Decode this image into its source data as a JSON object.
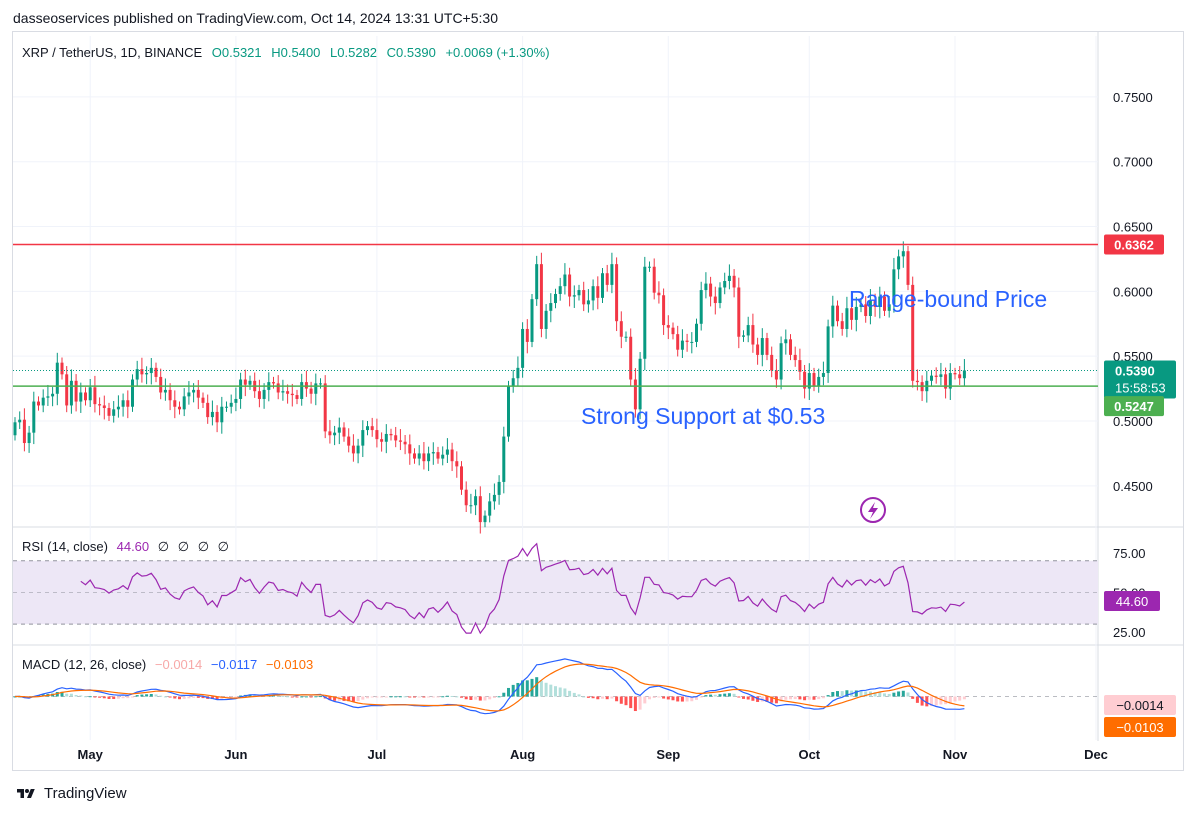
{
  "header": {
    "publisher": "dasseoservices published on TradingView.com, Oct 14, 2024 13:31 UTC+5:30"
  },
  "symbol": {
    "name": "XRP / TetherUS, 1D, BINANCE",
    "open": "O0.5321",
    "high": "H0.5400",
    "low": "L0.5282",
    "close": "C0.5390",
    "change": "+0.0069 (+1.30%)"
  },
  "colors": {
    "up": "#089981",
    "down": "#f23645",
    "resistance": "#f23645",
    "support": "#4caf50",
    "annotation": "#2962ff",
    "rsi_line": "#9c27b0",
    "rsi_band": "#ede7f6",
    "macd_line": "#2962ff",
    "signal_line": "#ff6d00"
  },
  "chart_data": [
    {
      "type": "candlestick",
      "title": "XRP / TetherUS, 1D, BINANCE",
      "x_labels": [
        "May",
        "Jun",
        "Jul",
        "Aug",
        "Sep",
        "Oct",
        "Nov",
        "Dec"
      ],
      "y_ticks": [
        "0.7500",
        "0.7000",
        "0.6500",
        "0.6000",
        "0.5500",
        "0.5000",
        "0.4500"
      ],
      "ylim": [
        0.419,
        0.797
      ],
      "first_date": "2024-04-15",
      "closes": [
        0.499,
        0.501,
        0.483,
        0.491,
        0.515,
        0.512,
        0.518,
        0.519,
        0.521,
        0.545,
        0.536,
        0.512,
        0.531,
        0.515,
        0.522,
        0.516,
        0.526,
        0.513,
        0.512,
        0.51,
        0.504,
        0.509,
        0.511,
        0.516,
        0.511,
        0.532,
        0.54,
        0.536,
        0.537,
        0.541,
        0.534,
        0.522,
        0.524,
        0.516,
        0.511,
        0.509,
        0.519,
        0.522,
        0.524,
        0.518,
        0.514,
        0.503,
        0.507,
        0.499,
        0.511,
        0.511,
        0.514,
        0.517,
        0.532,
        0.528,
        0.531,
        0.523,
        0.517,
        0.524,
        0.53,
        0.529,
        0.522,
        0.523,
        0.521,
        0.52,
        0.517,
        0.53,
        0.525,
        0.521,
        0.529,
        0.529,
        0.492,
        0.489,
        0.491,
        0.495,
        0.488,
        0.481,
        0.475,
        0.481,
        0.493,
        0.496,
        0.493,
        0.486,
        0.484,
        0.49,
        0.489,
        0.485,
        0.484,
        0.482,
        0.475,
        0.471,
        0.475,
        0.469,
        0.475,
        0.476,
        0.471,
        0.474,
        0.478,
        0.469,
        0.465,
        0.447,
        0.435,
        0.435,
        0.442,
        0.422,
        0.427,
        0.438,
        0.443,
        0.453,
        0.488,
        0.527,
        0.533,
        0.541,
        0.571,
        0.561,
        0.594,
        0.621,
        0.571,
        0.585,
        0.591,
        0.598,
        0.604,
        0.613,
        0.596,
        0.597,
        0.601,
        0.59,
        0.593,
        0.604,
        0.595,
        0.614,
        0.605,
        0.621,
        0.577,
        0.565,
        0.565,
        0.532,
        0.509,
        0.548,
        0.619,
        0.619,
        0.599,
        0.597,
        0.574,
        0.572,
        0.567,
        0.555,
        0.562,
        0.561,
        0.561,
        0.575,
        0.601,
        0.606,
        0.596,
        0.591,
        0.603,
        0.608,
        0.612,
        0.603,
        0.565,
        0.566,
        0.574,
        0.559,
        0.551,
        0.564,
        0.551,
        0.539,
        0.532,
        0.56,
        0.563,
        0.551,
        0.547,
        0.538,
        0.525,
        0.537,
        0.527,
        0.534,
        0.537,
        0.573,
        0.589,
        0.577,
        0.571,
        0.587,
        0.578,
        0.588,
        0.59,
        0.581,
        0.593,
        0.588,
        0.596,
        0.585,
        0.59,
        0.617,
        0.627,
        0.631,
        0.605,
        0.531,
        0.53,
        0.523,
        0.531,
        0.535,
        0.534,
        0.536,
        0.525,
        0.537,
        0.536,
        0.533,
        0.539
      ]
    },
    {
      "type": "line",
      "title": "RSI (14, close)",
      "series": [
        {
          "name": "RSI (14, close)",
          "last": 44.6
        }
      ],
      "y_ticks": [
        "75.00",
        "50.00",
        "25.00"
      ],
      "band": [
        30,
        70
      ]
    },
    {
      "type": "line",
      "title": "MACD (12, 26, close)",
      "series": [
        {
          "name": "histogram",
          "last": -0.0014
        },
        {
          "name": "MACD",
          "last": -0.0117
        },
        {
          "name": "Signal",
          "last": -0.0103
        }
      ]
    }
  ],
  "levels": {
    "resistance": {
      "value": 0.6362,
      "label": "0.6362"
    },
    "support": {
      "value": 0.5247,
      "label": "0.5247"
    },
    "last_price": {
      "value": 0.539,
      "label": "0.5390"
    },
    "countdown": "15:58:53"
  },
  "annotations": {
    "range": "Range-bound Price",
    "support": "Strong Support at $0.53"
  },
  "rsi": {
    "label": "RSI (14, close)",
    "value": "44.60",
    "extras": [
      "∅",
      "∅",
      "∅",
      "∅"
    ],
    "axis_value": "44.60"
  },
  "macd": {
    "label": "MACD (12, 26, close)",
    "hist": "−0.0014",
    "macd": "−0.0117",
    "signal": "−0.0103",
    "axis_hist": "−0.0014",
    "axis_signal": "−0.0103"
  },
  "footer": {
    "brand": "TradingView"
  }
}
